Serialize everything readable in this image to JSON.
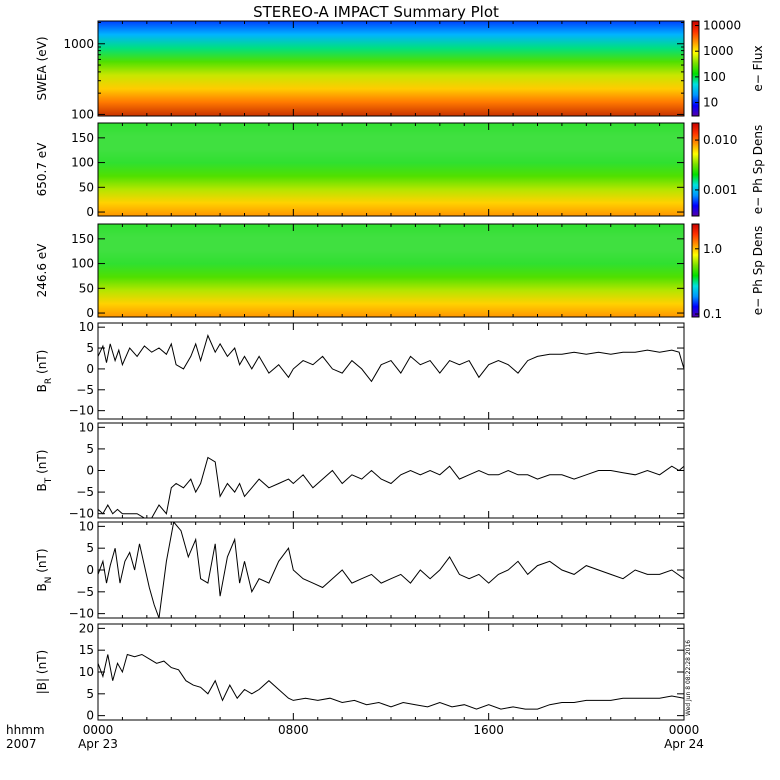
{
  "title": "STEREO-A IMPACT Summary Plot",
  "stamp": "Wed Jun  8 08:22:28 2016",
  "xaxis": {
    "label1": "hhmm",
    "label2": "2007",
    "ticks": [
      {
        "t": 0,
        "top": "0000",
        "bottom": "Apr 23"
      },
      {
        "t": 8,
        "top": "0800",
        "bottom": ""
      },
      {
        "t": 16,
        "top": "1600",
        "bottom": ""
      },
      {
        "t": 24,
        "top": "0000",
        "bottom": "Apr 24"
      }
    ],
    "minor_step_hours": 1,
    "range_hours": [
      0,
      24
    ]
  },
  "chart_data": [
    {
      "type": "heatmap",
      "ylabel": "SWEA (eV)",
      "yscale": "log",
      "ylim": [
        95,
        2100
      ],
      "yticks": [
        {
          "v": 100,
          "label": "100"
        },
        {
          "v": 1000,
          "label": "1000"
        }
      ],
      "colorbar": {
        "label": "e−  Flux",
        "scale": "log",
        "range": [
          3,
          15000
        ],
        "ticks": [
          {
            "v": 10,
            "label": "10"
          },
          {
            "v": 100,
            "label": "100"
          },
          {
            "v": 1000,
            "label": "1000"
          },
          {
            "v": 10000,
            "label": "10000"
          }
        ]
      },
      "colormap": [
        "#5500aa",
        "#0000ff",
        "#0096ff",
        "#00e0e0",
        "#00e000",
        "#7be000",
        "#ffff00",
        "#ff9600",
        "#ff3200",
        "#c80000"
      ]
    },
    {
      "type": "heatmap",
      "ylabel": "650.7 eV",
      "ylim": [
        -8,
        180
      ],
      "yticks": [
        {
          "v": 0,
          "label": "0"
        },
        {
          "v": 50,
          "label": "50"
        },
        {
          "v": 100,
          "label": "100"
        },
        {
          "v": 150,
          "label": "150"
        }
      ],
      "colorbar": {
        "label": "e−  Ph Sp Dens",
        "scale": "log",
        "range": [
          0.0003,
          0.022
        ],
        "ticks": [
          {
            "v": 0.001,
            "label": "0.001"
          },
          {
            "v": 0.01,
            "label": "0.010"
          }
        ]
      },
      "colormap": [
        "#5500aa",
        "#0000ff",
        "#0096ff",
        "#00e0e0",
        "#00e000",
        "#7be000",
        "#ffff00",
        "#ff9600",
        "#ff3200",
        "#c80000"
      ]
    },
    {
      "type": "heatmap",
      "ylabel": "246.6 eV",
      "ylim": [
        -8,
        180
      ],
      "yticks": [
        {
          "v": 0,
          "label": "0"
        },
        {
          "v": 50,
          "label": "50"
        },
        {
          "v": 100,
          "label": "100"
        },
        {
          "v": 150,
          "label": "150"
        }
      ],
      "colorbar": {
        "label": "e−  Ph Sp Dens",
        "scale": "log",
        "range": [
          0.09,
          2.4
        ],
        "ticks": [
          {
            "v": 0.1,
            "label": "0.1"
          },
          {
            "v": 1.0,
            "label": "1.0"
          }
        ]
      },
      "colormap": [
        "#5500aa",
        "#0000ff",
        "#0096ff",
        "#00e0e0",
        "#00e000",
        "#7be000",
        "#ffff00",
        "#ff9600",
        "#ff3200",
        "#c80000"
      ]
    },
    {
      "type": "line",
      "ylabel": "B",
      "ysub": "R",
      "yunit": "(nT)",
      "ylim": [
        -12,
        11
      ],
      "yticks": [
        {
          "v": -10,
          "label": "−10"
        },
        {
          "v": -5,
          "label": "−5"
        },
        {
          "v": 0,
          "label": "0"
        },
        {
          "v": 5,
          "label": "5"
        },
        {
          "v": 10,
          "label": "10"
        }
      ],
      "x": [
        0,
        0.2,
        0.35,
        0.5,
        0.7,
        0.85,
        1.0,
        1.3,
        1.6,
        1.9,
        2.2,
        2.5,
        2.8,
        3.0,
        3.2,
        3.5,
        3.8,
        4.0,
        4.2,
        4.5,
        4.8,
        5.0,
        5.3,
        5.6,
        5.8,
        6.0,
        6.3,
        6.6,
        7.0,
        7.4,
        7.8,
        8.0,
        8.4,
        8.8,
        9.2,
        9.6,
        10.0,
        10.4,
        10.8,
        11.2,
        11.6,
        12.0,
        12.4,
        12.8,
        13.2,
        13.6,
        14.0,
        14.4,
        14.8,
        15.2,
        15.6,
        16.0,
        16.4,
        16.8,
        17.2,
        17.6,
        18.0,
        18.5,
        19.0,
        19.5,
        20.0,
        20.5,
        21.0,
        21.5,
        22.0,
        22.5,
        23.0,
        23.5,
        23.8,
        24.0
      ],
      "y": [
        3,
        5.5,
        1.5,
        6,
        2,
        4.5,
        1,
        5,
        3,
        5.5,
        4,
        5,
        3.5,
        6,
        1,
        0,
        3,
        6,
        2,
        8,
        4,
        6,
        3,
        5,
        1,
        3,
        0,
        3,
        -1,
        1,
        -2,
        0,
        2,
        1,
        3,
        0,
        -1,
        2,
        0,
        -3,
        1,
        2,
        -1,
        3,
        1,
        2,
        -1,
        2,
        1,
        2,
        -2,
        1,
        2,
        1,
        -1,
        2,
        3,
        3.5,
        3.5,
        4,
        3.5,
        4,
        3.5,
        4,
        4,
        4.5,
        4,
        4.5,
        4,
        0
      ]
    },
    {
      "type": "line",
      "ylabel": "B",
      "ysub": "T",
      "yunit": "(nT)",
      "ylim": [
        -11,
        11
      ],
      "yticks": [
        {
          "v": -10,
          "label": "−10"
        },
        {
          "v": -5,
          "label": "−5"
        },
        {
          "v": 0,
          "label": "0"
        },
        {
          "v": 5,
          "label": "5"
        },
        {
          "v": 10,
          "label": "10"
        }
      ],
      "x": [
        0,
        0.2,
        0.4,
        0.6,
        0.8,
        1.0,
        1.3,
        1.6,
        1.9,
        2.2,
        2.5,
        2.8,
        3.0,
        3.2,
        3.5,
        3.8,
        4.0,
        4.2,
        4.5,
        4.8,
        5.0,
        5.3,
        5.6,
        5.8,
        6.0,
        6.3,
        6.6,
        7.0,
        7.4,
        7.8,
        8.0,
        8.4,
        8.8,
        9.2,
        9.6,
        10.0,
        10.4,
        10.8,
        11.2,
        11.6,
        12.0,
        12.4,
        12.8,
        13.2,
        13.6,
        14.0,
        14.4,
        14.8,
        15.2,
        15.6,
        16.0,
        16.4,
        16.8,
        17.2,
        17.6,
        18.0,
        18.5,
        19.0,
        19.5,
        20.0,
        20.5,
        21.0,
        21.5,
        22.0,
        22.5,
        23.0,
        23.5,
        23.8,
        24.0
      ],
      "y": [
        -9,
        -10,
        -8,
        -10,
        -9,
        -10,
        -10,
        -10,
        -11,
        -11,
        -8,
        -10,
        -4,
        -3,
        -4,
        -2,
        -5,
        -3,
        3,
        2,
        -6,
        -3,
        -5,
        -3,
        -6,
        -4,
        -2,
        -4,
        -3,
        -2,
        -3,
        -1,
        -4,
        -2,
        0,
        -3,
        -1,
        -2,
        0,
        -2,
        -3,
        -1,
        0,
        -1,
        0,
        -1,
        1,
        -2,
        -1,
        0,
        -1,
        -1,
        0,
        -1,
        -1,
        -2,
        -1,
        -1,
        -2,
        -1,
        0,
        0,
        -0.5,
        -1,
        0,
        -1,
        1,
        0,
        1
      ]
    },
    {
      "type": "line",
      "ylabel": "B",
      "ysub": "N",
      "yunit": "(nT)",
      "ylim": [
        -11,
        11
      ],
      "yticks": [
        {
          "v": -10,
          "label": "−10"
        },
        {
          "v": -5,
          "label": "−5"
        },
        {
          "v": 0,
          "label": "0"
        },
        {
          "v": 5,
          "label": "5"
        },
        {
          "v": 10,
          "label": "10"
        }
      ],
      "x": [
        0,
        0.2,
        0.35,
        0.5,
        0.7,
        0.9,
        1.1,
        1.3,
        1.5,
        1.7,
        1.9,
        2.1,
        2.3,
        2.5,
        2.8,
        3.1,
        3.4,
        3.7,
        4.0,
        4.2,
        4.5,
        4.8,
        5.0,
        5.3,
        5.6,
        5.8,
        6.0,
        6.3,
        6.6,
        7.0,
        7.4,
        7.8,
        8.0,
        8.4,
        8.8,
        9.2,
        9.6,
        10.0,
        10.4,
        10.8,
        11.2,
        11.6,
        12.0,
        12.4,
        12.8,
        13.2,
        13.6,
        14.0,
        14.4,
        14.8,
        15.2,
        15.6,
        16.0,
        16.4,
        16.8,
        17.2,
        17.6,
        18.0,
        18.5,
        19.0,
        19.5,
        20.0,
        20.5,
        21.0,
        21.5,
        22.0,
        22.5,
        23.0,
        23.5,
        24.0
      ],
      "y": [
        -1,
        2,
        -3,
        1,
        5,
        -3,
        2,
        4,
        0,
        6,
        1,
        -4,
        -8,
        -11,
        2,
        11,
        9,
        3,
        7,
        -2,
        -3,
        6,
        -6,
        3,
        7,
        -3,
        2,
        -5,
        -2,
        -3,
        2,
        5,
        0,
        -2,
        -3,
        -4,
        -2,
        0,
        -3,
        -2,
        -1,
        -3,
        -2,
        -1,
        -3,
        0,
        -2,
        0,
        3,
        -1,
        -2,
        -1,
        -3,
        -1,
        0,
        2,
        -1,
        1,
        2,
        0,
        -1,
        1,
        0,
        -1,
        -2,
        0,
        -1,
        -1,
        0,
        -2
      ]
    },
    {
      "type": "line",
      "ylabel": "|B|",
      "ysub": "",
      "yunit": "(nT)",
      "ylim": [
        -1,
        21
      ],
      "yticks": [
        {
          "v": 0,
          "label": "0"
        },
        {
          "v": 5,
          "label": "5"
        },
        {
          "v": 10,
          "label": "10"
        },
        {
          "v": 15,
          "label": "15"
        },
        {
          "v": 20,
          "label": "20"
        }
      ],
      "x": [
        0,
        0.2,
        0.4,
        0.6,
        0.8,
        1.0,
        1.2,
        1.5,
        1.8,
        2.1,
        2.4,
        2.7,
        3.0,
        3.3,
        3.6,
        3.9,
        4.2,
        4.5,
        4.8,
        5.1,
        5.4,
        5.7,
        6.0,
        6.3,
        6.6,
        7.0,
        7.4,
        7.8,
        8.0,
        8.5,
        9.0,
        9.5,
        10.0,
        10.5,
        11.0,
        11.5,
        12.0,
        12.5,
        13.0,
        13.5,
        14.0,
        14.5,
        15.0,
        15.5,
        16.0,
        16.5,
        17.0,
        17.5,
        18.0,
        18.5,
        19.0,
        19.5,
        20.0,
        20.5,
        21.0,
        21.5,
        22.0,
        22.5,
        23.0,
        23.5,
        24.0
      ],
      "y": [
        12,
        9,
        14,
        8,
        12,
        10,
        14,
        13.5,
        14,
        13,
        12,
        12.5,
        11,
        10.5,
        8,
        7,
        6.5,
        5,
        8,
        3.5,
        7,
        4,
        6,
        5,
        6,
        8,
        6,
        4,
        3.5,
        4,
        3.5,
        4,
        3,
        3.5,
        2.5,
        3,
        2,
        3,
        2.5,
        2,
        3,
        2,
        2.5,
        1.5,
        2.5,
        1.5,
        2,
        1.5,
        1.5,
        2.5,
        3,
        3,
        3.5,
        3.5,
        3.5,
        4,
        4,
        4,
        4,
        4.5,
        4
      ]
    }
  ]
}
